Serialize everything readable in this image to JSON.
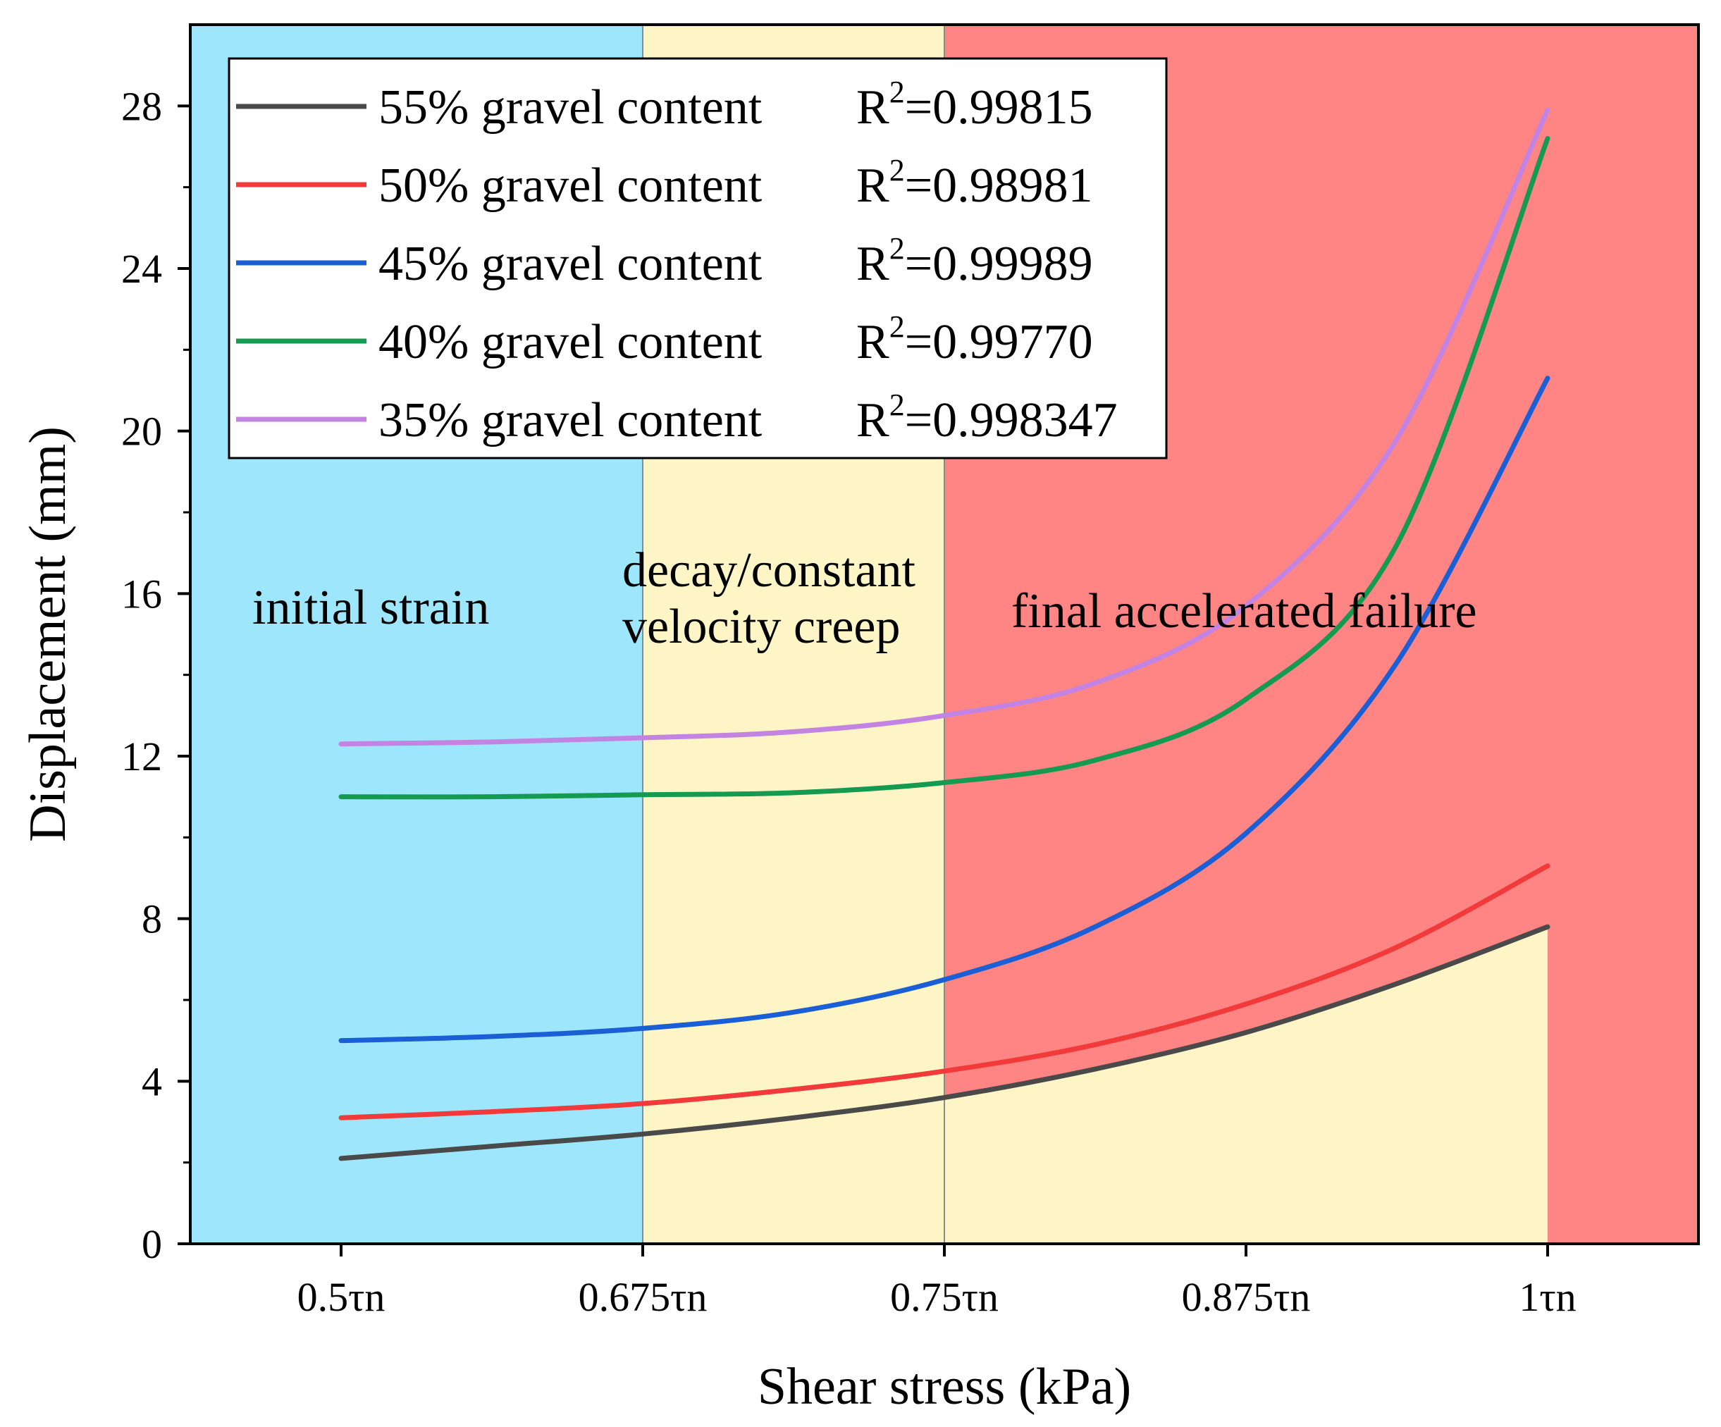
{
  "chart_data": {
    "type": "line",
    "xlabel": "Shear stress (kPa)",
    "ylabel": "Displacement (mm)",
    "ylim": [
      0,
      30
    ],
    "yticks": [
      0,
      4,
      8,
      12,
      16,
      20,
      24,
      28
    ],
    "x_categories": [
      "0.5τn",
      "0.675τn",
      "0.75τn",
      "0.875τn",
      "1τn"
    ],
    "xlim_index": [
      -0.5,
      4.5
    ],
    "regions": [
      {
        "name": "initial strain",
        "label_lines": [
          "initial strain"
        ],
        "from": -0.5,
        "to": 1,
        "color": "#9ee6fb"
      },
      {
        "name": "decay/constant velocity creep",
        "label_lines": [
          "decay/constant",
          "velocity creep"
        ],
        "from": 1,
        "to": 2,
        "color": "#fdf5c6"
      },
      {
        "name": "final accelerated failure",
        "label_lines": [
          "final accelerated failure"
        ],
        "from": 2,
        "to": 4.5,
        "color": "#fe8583"
      }
    ],
    "under_curve_fill_color": "#fdf5c6",
    "series": [
      {
        "name": "55% gravel content",
        "r2_value": "=0.99815",
        "color": "#4a4a4a",
        "points": [
          [
            0,
            2.1
          ],
          [
            0.5,
            2.4
          ],
          [
            1,
            2.7
          ],
          [
            1.5,
            3.1
          ],
          [
            2,
            3.6
          ],
          [
            2.5,
            4.3
          ],
          [
            3,
            5.2
          ],
          [
            3.5,
            6.4
          ],
          [
            4,
            7.8
          ]
        ]
      },
      {
        "name": "50% gravel content",
        "r2_value": "=0.98981",
        "color": "#f23a3a",
        "points": [
          [
            0,
            3.1
          ],
          [
            0.5,
            3.25
          ],
          [
            1,
            3.45
          ],
          [
            1.5,
            3.8
          ],
          [
            2,
            4.25
          ],
          [
            2.5,
            4.9
          ],
          [
            3,
            5.9
          ],
          [
            3.5,
            7.3
          ],
          [
            4,
            9.3
          ]
        ]
      },
      {
        "name": "45% gravel content",
        "r2_value": "=0.99989",
        "color": "#1b5fd6",
        "points": [
          [
            0,
            5.0
          ],
          [
            0.5,
            5.1
          ],
          [
            1,
            5.3
          ],
          [
            1.5,
            5.7
          ],
          [
            2,
            6.5
          ],
          [
            2.5,
            7.8
          ],
          [
            3,
            10.1
          ],
          [
            3.5,
            14.3
          ],
          [
            4,
            21.3
          ]
        ]
      },
      {
        "name": "40% gravel content",
        "r2_value": "=0.99770",
        "color": "#159a52",
        "points": [
          [
            0,
            11.0
          ],
          [
            0.5,
            11.0
          ],
          [
            1,
            11.05
          ],
          [
            1.5,
            11.1
          ],
          [
            2,
            11.35
          ],
          [
            2.5,
            11.9
          ],
          [
            3,
            13.4
          ],
          [
            3.5,
            17.2
          ],
          [
            4,
            27.2
          ]
        ]
      },
      {
        "name": "35% gravel content",
        "r2_value": "=0.998347",
        "color": "#c383e3",
        "points": [
          [
            0,
            12.3
          ],
          [
            0.5,
            12.35
          ],
          [
            1,
            12.45
          ],
          [
            1.5,
            12.6
          ],
          [
            2,
            13.0
          ],
          [
            2.5,
            13.8
          ],
          [
            3,
            15.7
          ],
          [
            3.5,
            19.8
          ],
          [
            4,
            27.9
          ]
        ]
      }
    ],
    "legend": {
      "placement": "top-left",
      "r2_label": "R",
      "r2_superscript": "2"
    }
  }
}
